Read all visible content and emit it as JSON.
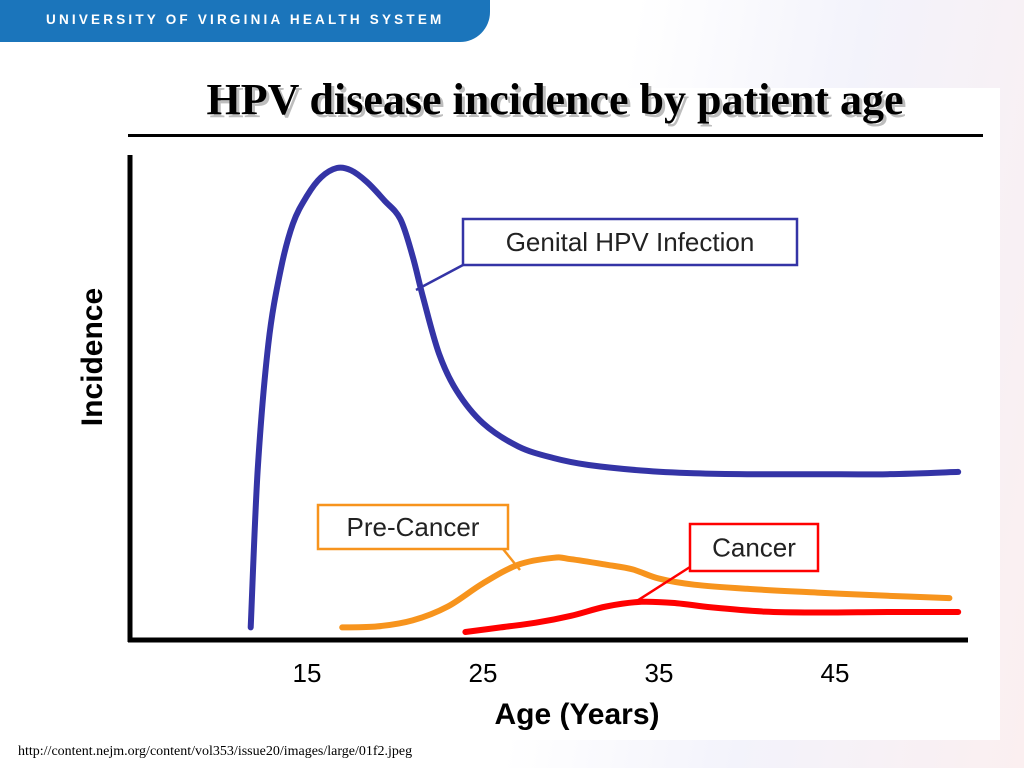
{
  "header": {
    "text": "UNIVERSITY OF VIRGINIA HEALTH SYSTEM"
  },
  "slide": {
    "title": "HPV disease incidence by patient age",
    "source_url": "http://content.nejm.org/content/vol353/issue20/images/large/01f2.jpeg"
  },
  "colors": {
    "header_bar": "#1b75bb",
    "genital_hpv": "#3434a6",
    "pre_cancer": "#f7941d",
    "cancer": "#ff0000"
  },
  "chart_data": {
    "type": "line",
    "title": "HPV disease incidence by patient age",
    "xlabel": "Age (Years)",
    "ylabel": "Incidence",
    "x_ticks": [
      15,
      25,
      35,
      45
    ],
    "xlim": [
      6,
      52
    ],
    "ylim": [
      0,
      100
    ],
    "grid": false,
    "y_tick_labels": false,
    "series": [
      {
        "name": "Genital HPV Infection",
        "color": "#3434a6",
        "x": [
          11.8,
          12.2,
          12.8,
          13.5,
          14.2,
          15,
          15.8,
          16.7,
          17.5,
          18.4,
          19.4,
          20.3,
          21,
          21.6,
          22.5,
          23.5,
          25,
          27,
          29,
          31,
          34,
          37,
          40,
          44,
          48,
          52
        ],
        "y": [
          1,
          35,
          62,
          78,
          88,
          94,
          98,
          100,
          99.5,
          97,
          93,
          89,
          81,
          72,
          60,
          52,
          45,
          40,
          37.5,
          36,
          34.8,
          34.2,
          34,
          34,
          34,
          34.5
        ]
      },
      {
        "name": "Pre-Cancer",
        "color": "#f7941d",
        "x": [
          17,
          19,
          21,
          23,
          25,
          27,
          29,
          30,
          32,
          33.5,
          35,
          37,
          40,
          44,
          48,
          51.5
        ],
        "y": [
          1,
          1.2,
          2.5,
          5.5,
          10.5,
          14.5,
          16,
          15.7,
          14.5,
          13.5,
          11.5,
          10.2,
          9.3,
          8.5,
          7.8,
          7.3
        ]
      },
      {
        "name": "Cancer",
        "color": "#ff0000",
        "x": [
          24,
          26,
          28,
          30,
          32,
          34,
          36,
          38,
          41,
          44,
          48,
          52
        ],
        "y": [
          0,
          1,
          2,
          3.5,
          5.5,
          6.5,
          6.2,
          5.3,
          4.4,
          4.2,
          4.3,
          4.3
        ]
      }
    ],
    "annotations": [
      "Genital HPV Infection",
      "Pre-Cancer",
      "Cancer"
    ]
  }
}
